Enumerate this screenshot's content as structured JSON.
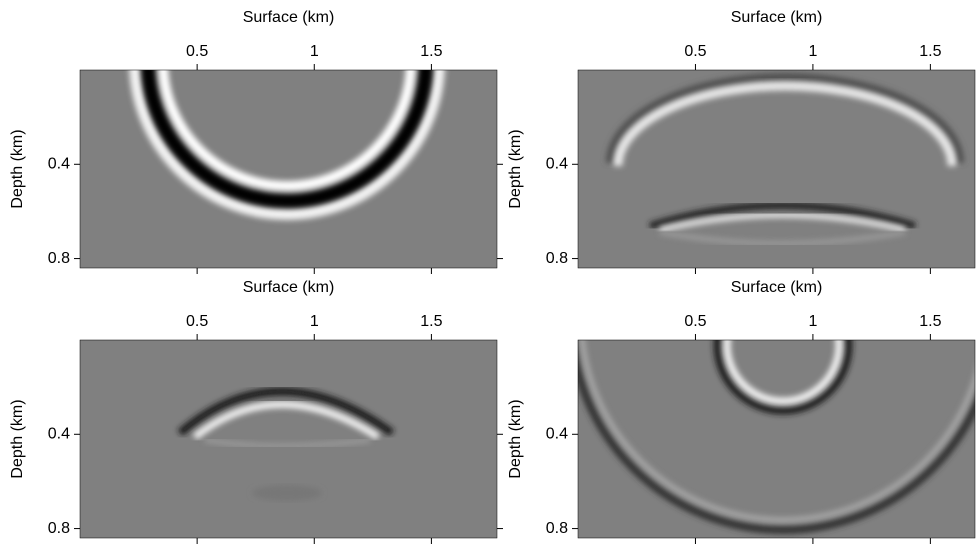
{
  "chart_data": [
    {
      "type": "image",
      "xlabel": "Surface (km)",
      "ylabel": "Depth (km)",
      "xlim": [
        0,
        1.78
      ],
      "ylim": [
        0,
        0.84
      ],
      "xticks": [
        0.5,
        1,
        1.5
      ],
      "yticks": [
        0.4,
        0.8
      ]
    },
    {
      "type": "image",
      "xlabel": "Surface (km)",
      "ylabel": "Depth (km)",
      "xlim": [
        0,
        1.69
      ],
      "ylim": [
        0,
        0.84
      ],
      "xticks": [
        0.5,
        1,
        1.5
      ],
      "yticks": [
        0.4,
        0.8
      ]
    },
    {
      "type": "image",
      "xlabel": "Surface (km)",
      "ylabel": "Depth (km)",
      "xlim": [
        0,
        1.78
      ],
      "ylim": [
        0,
        0.84
      ],
      "xticks": [
        0.5,
        1,
        1.5
      ],
      "yticks": [
        0.4,
        0.8
      ]
    },
    {
      "type": "image",
      "xlabel": "Surface (km)",
      "ylabel": "Depth (km)",
      "xlim": [
        0,
        1.69
      ],
      "ylim": [
        0,
        0.84
      ],
      "xticks": [
        0.5,
        1,
        1.5
      ],
      "yticks": [
        0.4,
        0.8
      ]
    }
  ]
}
